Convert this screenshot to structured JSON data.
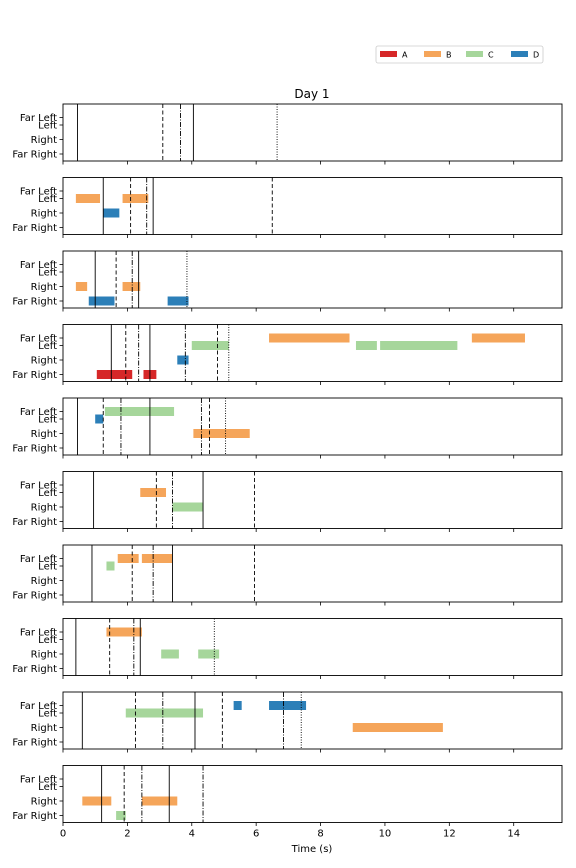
{
  "chart_data": {
    "type": "timeline",
    "title": "Day 1",
    "xlabel": "Time (s)",
    "xlim": [
      0,
      15.5
    ],
    "xticks": [
      0,
      2,
      4,
      6,
      8,
      10,
      12,
      14
    ],
    "rows": [
      "Far Left",
      "Left",
      "Right",
      "Far Right"
    ],
    "legend": {
      "position": "top-right",
      "items": [
        {
          "name": "A",
          "color": "#d62728"
        },
        {
          "name": "B",
          "color": "#f5a55a"
        },
        {
          "name": "C",
          "color": "#a6d69b"
        },
        {
          "name": "D",
          "color": "#2c7fb8"
        }
      ]
    },
    "panels": [
      {
        "bars": [],
        "vlines": [
          {
            "x": 0.45,
            "style": "solid"
          },
          {
            "x": 3.1,
            "style": "dashed"
          },
          {
            "x": 3.65,
            "style": "dashdot"
          },
          {
            "x": 4.05,
            "style": "solid"
          },
          {
            "x": 6.65,
            "style": "dotted"
          }
        ]
      },
      {
        "bars": [
          {
            "cat": "B",
            "row": "Left",
            "start": 0.4,
            "end": 1.15
          },
          {
            "cat": "B",
            "row": "Left",
            "start": 1.85,
            "end": 2.65
          },
          {
            "cat": "D",
            "row": "Right",
            "start": 1.25,
            "end": 1.75
          }
        ],
        "vlines": [
          {
            "x": 1.25,
            "style": "solid"
          },
          {
            "x": 2.1,
            "style": "dashed"
          },
          {
            "x": 2.6,
            "style": "dashdot"
          },
          {
            "x": 2.8,
            "style": "solid"
          },
          {
            "x": 6.5,
            "style": "dashed"
          }
        ]
      },
      {
        "bars": [
          {
            "cat": "B",
            "row": "Right",
            "start": 0.4,
            "end": 0.75
          },
          {
            "cat": "B",
            "row": "Right",
            "start": 1.85,
            "end": 2.4
          },
          {
            "cat": "D",
            "row": "Far Right",
            "start": 0.8,
            "end": 1.6
          },
          {
            "cat": "D",
            "row": "Far Right",
            "start": 3.25,
            "end": 3.9
          }
        ],
        "vlines": [
          {
            "x": 1.0,
            "style": "solid"
          },
          {
            "x": 1.65,
            "style": "dashed"
          },
          {
            "x": 2.15,
            "style": "dashdot"
          },
          {
            "x": 2.35,
            "style": "solid"
          },
          {
            "x": 3.85,
            "style": "dotted"
          }
        ]
      },
      {
        "bars": [
          {
            "cat": "A",
            "row": "Far Right",
            "start": 1.05,
            "end": 2.15
          },
          {
            "cat": "A",
            "row": "Far Right",
            "start": 2.5,
            "end": 2.9
          },
          {
            "cat": "B",
            "row": "Far Left",
            "start": 6.4,
            "end": 8.9
          },
          {
            "cat": "B",
            "row": "Far Left",
            "start": 12.7,
            "end": 14.35
          },
          {
            "cat": "C",
            "row": "Left",
            "start": 4.0,
            "end": 5.15
          },
          {
            "cat": "C",
            "row": "Left",
            "start": 9.1,
            "end": 9.75
          },
          {
            "cat": "C",
            "row": "Left",
            "start": 9.85,
            "end": 12.25
          },
          {
            "cat": "D",
            "row": "Right",
            "start": 3.55,
            "end": 3.9
          }
        ],
        "vlines": [
          {
            "x": 1.5,
            "style": "solid"
          },
          {
            "x": 1.95,
            "style": "dashed"
          },
          {
            "x": 2.35,
            "style": "dashdot"
          },
          {
            "x": 2.7,
            "style": "solid"
          },
          {
            "x": 3.8,
            "style": "dashdot"
          },
          {
            "x": 4.8,
            "style": "dashed"
          },
          {
            "x": 5.15,
            "style": "dotted"
          }
        ]
      },
      {
        "bars": [
          {
            "cat": "C",
            "row": "Far Left",
            "start": 1.3,
            "end": 3.45
          },
          {
            "cat": "D",
            "row": "Left",
            "start": 1.0,
            "end": 1.25
          },
          {
            "cat": "B",
            "row": "Right",
            "start": 4.05,
            "end": 5.8
          }
        ],
        "vlines": [
          {
            "x": 0.45,
            "style": "solid"
          },
          {
            "x": 1.25,
            "style": "dashed"
          },
          {
            "x": 1.8,
            "style": "dashdot"
          },
          {
            "x": 2.7,
            "style": "solid"
          },
          {
            "x": 4.3,
            "style": "dashdot"
          },
          {
            "x": 4.55,
            "style": "dashed"
          },
          {
            "x": 5.05,
            "style": "dotted"
          }
        ]
      },
      {
        "bars": [
          {
            "cat": "B",
            "row": "Left",
            "start": 2.4,
            "end": 3.2
          },
          {
            "cat": "C",
            "row": "Right",
            "start": 3.4,
            "end": 4.35
          }
        ],
        "vlines": [
          {
            "x": 0.95,
            "style": "solid"
          },
          {
            "x": 2.9,
            "style": "dashed"
          },
          {
            "x": 3.4,
            "style": "dashdot"
          },
          {
            "x": 4.35,
            "style": "solid"
          },
          {
            "x": 5.95,
            "style": "dashed"
          }
        ]
      },
      {
        "bars": [
          {
            "cat": "B",
            "row": "Far Left",
            "start": 1.7,
            "end": 2.35
          },
          {
            "cat": "B",
            "row": "Far Left",
            "start": 2.45,
            "end": 3.4
          },
          {
            "cat": "C",
            "row": "Left",
            "start": 1.35,
            "end": 1.6
          }
        ],
        "vlines": [
          {
            "x": 0.9,
            "style": "solid"
          },
          {
            "x": 2.15,
            "style": "dashed"
          },
          {
            "x": 2.8,
            "style": "dashdot"
          },
          {
            "x": 3.4,
            "style": "solid"
          },
          {
            "x": 5.95,
            "style": "dashed"
          }
        ]
      },
      {
        "bars": [
          {
            "cat": "B",
            "row": "Far Left",
            "start": 1.35,
            "end": 2.45
          },
          {
            "cat": "C",
            "row": "Right",
            "start": 3.05,
            "end": 3.6
          },
          {
            "cat": "C",
            "row": "Right",
            "start": 4.2,
            "end": 4.85
          }
        ],
        "vlines": [
          {
            "x": 0.4,
            "style": "solid"
          },
          {
            "x": 1.45,
            "style": "dashed"
          },
          {
            "x": 2.2,
            "style": "dashdot"
          },
          {
            "x": 2.4,
            "style": "solid"
          },
          {
            "x": 4.7,
            "style": "dotted"
          }
        ]
      },
      {
        "bars": [
          {
            "cat": "D",
            "row": "Far Left",
            "start": 5.3,
            "end": 5.55
          },
          {
            "cat": "D",
            "row": "Far Left",
            "start": 6.4,
            "end": 7.55
          },
          {
            "cat": "C",
            "row": "Left",
            "start": 1.95,
            "end": 4.35
          },
          {
            "cat": "B",
            "row": "Right",
            "start": 9.0,
            "end": 11.8
          }
        ],
        "vlines": [
          {
            "x": 0.6,
            "style": "solid"
          },
          {
            "x": 2.25,
            "style": "dashed"
          },
          {
            "x": 3.1,
            "style": "dashdot"
          },
          {
            "x": 4.1,
            "style": "solid"
          },
          {
            "x": 4.95,
            "style": "dashed"
          },
          {
            "x": 6.85,
            "style": "dashdot"
          },
          {
            "x": 7.4,
            "style": "dotted"
          }
        ]
      },
      {
        "bars": [
          {
            "cat": "B",
            "row": "Right",
            "start": 0.6,
            "end": 1.5
          },
          {
            "cat": "B",
            "row": "Right",
            "start": 2.45,
            "end": 3.55
          },
          {
            "cat": "C",
            "row": "Far Right",
            "start": 1.65,
            "end": 1.95
          }
        ],
        "vlines": [
          {
            "x": 1.2,
            "style": "solid"
          },
          {
            "x": 1.9,
            "style": "dashed"
          },
          {
            "x": 2.45,
            "style": "dashdot"
          },
          {
            "x": 3.3,
            "style": "solid"
          },
          {
            "x": 4.35,
            "style": "dashdot"
          }
        ]
      }
    ]
  }
}
